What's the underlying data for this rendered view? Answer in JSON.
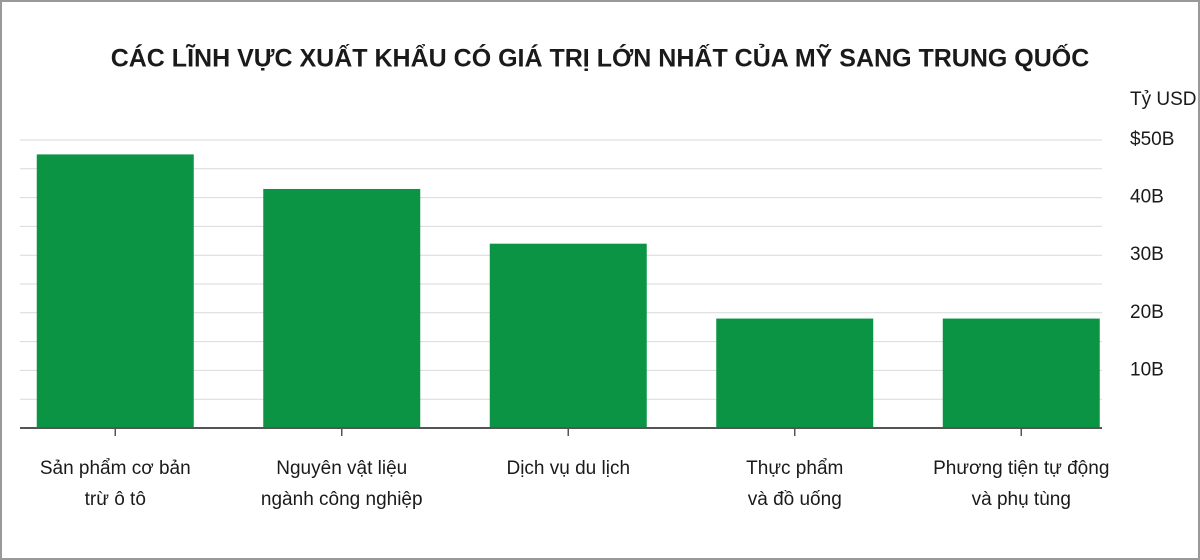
{
  "chart_data": {
    "type": "bar",
    "title": "CÁC LĨNH VỰC XUẤT KHẨU CÓ GIÁ TRỊ LỚN NHẤT CỦA MỸ SANG TRUNG QUỐC",
    "y_unit": "Tỷ USD",
    "categories": [
      [
        "Sản phẩm cơ bản",
        "trừ ô tô"
      ],
      [
        "Nguyên vật liệu",
        "ngành công nghiệp"
      ],
      [
        "Dịch vụ du lịch"
      ],
      [
        "Thực phẩm",
        "và đồ uống"
      ],
      [
        "Phương tiện tự động",
        "và phụ tùng"
      ]
    ],
    "values": [
      47.5,
      41.5,
      32,
      19,
      19
    ],
    "color": "#0b9444",
    "ylim": [
      0,
      50
    ],
    "yticks": [
      {
        "value": 10,
        "label": "10B"
      },
      {
        "value": 20,
        "label": "20B"
      },
      {
        "value": 30,
        "label": "30B"
      },
      {
        "value": 40,
        "label": "40B"
      },
      {
        "value": 50,
        "label": "$50B"
      }
    ],
    "minor_yticks": [
      5,
      15,
      25,
      35,
      45
    ],
    "grid": true
  }
}
